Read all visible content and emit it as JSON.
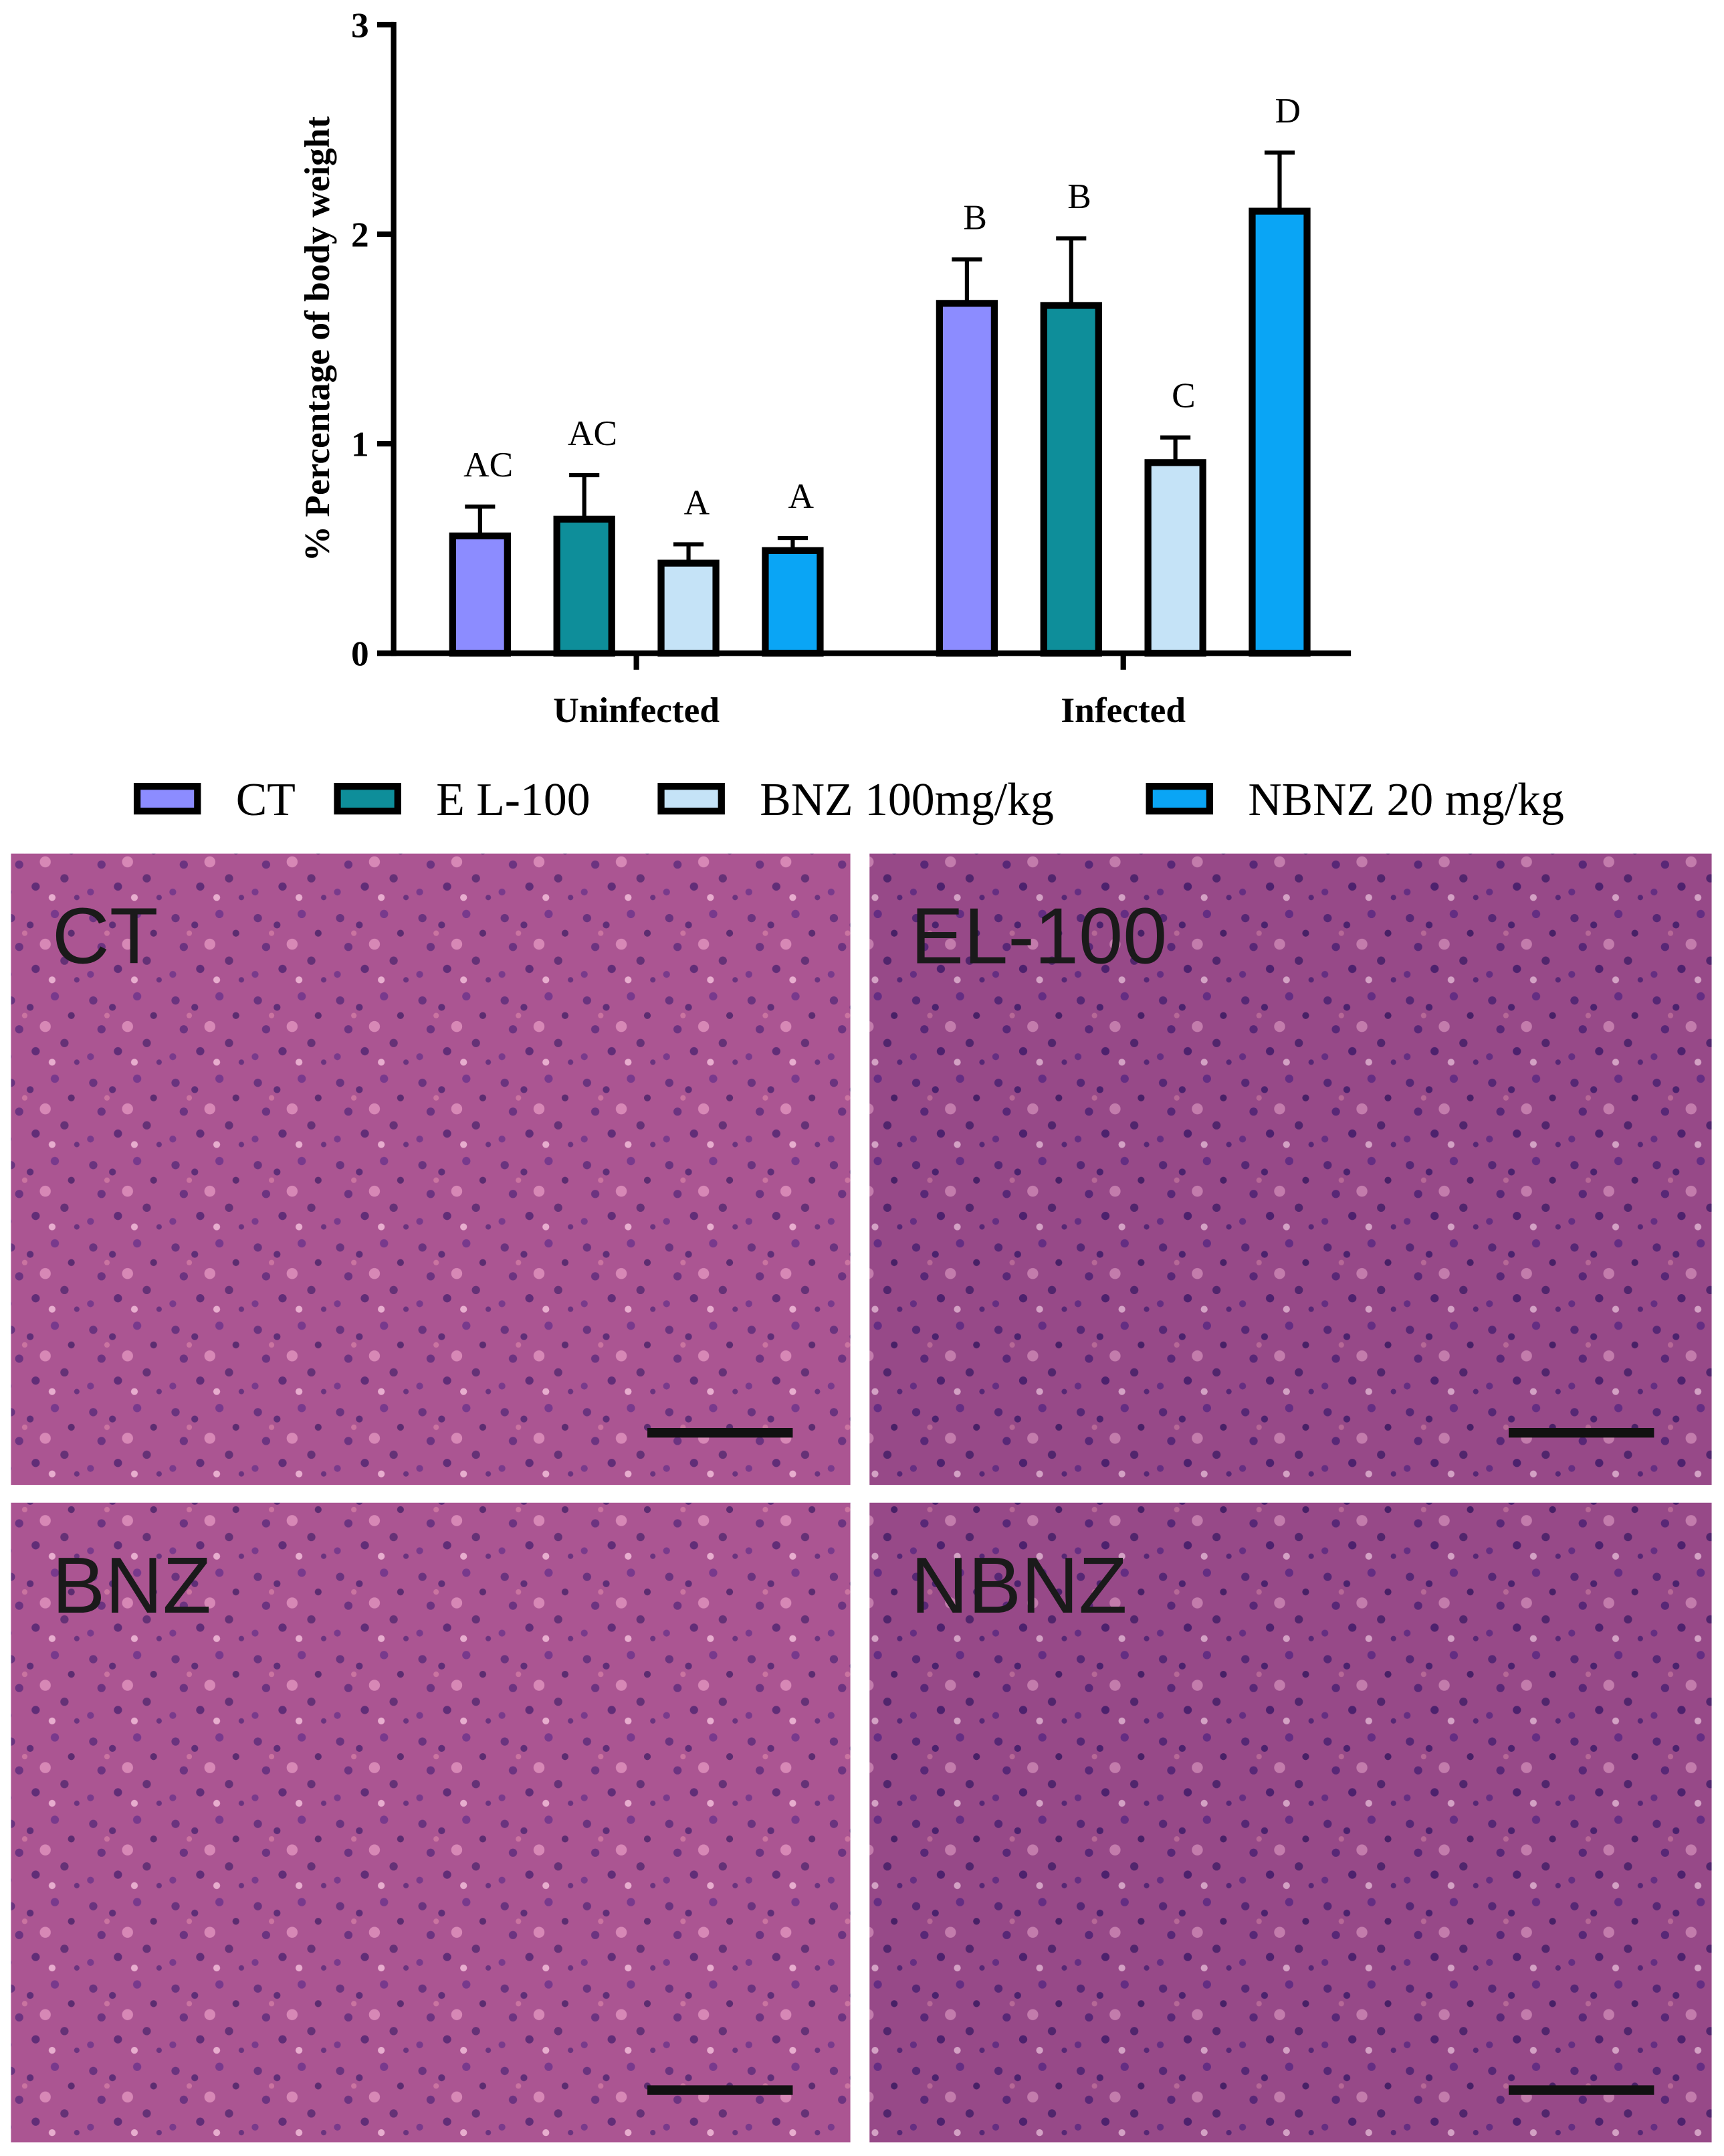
{
  "chart_data": {
    "type": "bar",
    "y_label": "% Percentage of body weight",
    "categories": [
      "Uninfected",
      "Infected"
    ],
    "series": [
      {
        "name": "CT",
        "color": "#8c8cff",
        "values": [
          0.56,
          1.67
        ],
        "errors": [
          0.14,
          0.21
        ],
        "labels": [
          "AC",
          "B"
        ]
      },
      {
        "name": "E L-100",
        "color": "#0e8e9a",
        "values": [
          0.64,
          1.66
        ],
        "errors": [
          0.21,
          0.32
        ],
        "labels": [
          "AC",
          "B"
        ]
      },
      {
        "name": "BNZ 100mg/kg",
        "color": "#c5e3f7",
        "values": [
          0.43,
          0.91
        ],
        "errors": [
          0.09,
          0.12
        ],
        "labels": [
          "A",
          "C"
        ]
      },
      {
        "name": "NBNZ 20 mg/kg",
        "color": "#0aa5f5",
        "values": [
          0.49,
          2.11
        ],
        "errors": [
          0.06,
          0.28
        ],
        "labels": [
          "A",
          "D"
        ]
      }
    ],
    "ylim": [
      0,
      3
    ],
    "yticks": [
      0,
      1,
      2,
      3
    ],
    "legend": "bottom"
  },
  "panels": [
    "CT",
    "EL-100",
    "BNZ",
    "NBNZ"
  ]
}
